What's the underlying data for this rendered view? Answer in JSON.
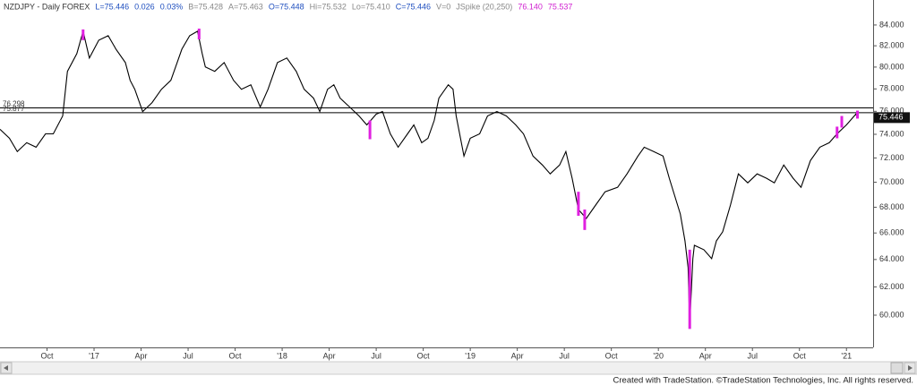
{
  "chart_data": {
    "type": "line",
    "log_scale": true,
    "header": [
      {
        "text": "NZDJPY - Daily  FOREX",
        "color": "#333333"
      },
      {
        "text": "L=75.446",
        "color": "#1f4fbf"
      },
      {
        "text": "0.026",
        "color": "#1f4fbf"
      },
      {
        "text": "0.03%",
        "color": "#1f4fbf"
      },
      {
        "text": "B=75.428",
        "color": "#888888"
      },
      {
        "text": "A=75.463",
        "color": "#888888"
      },
      {
        "text": "O=75.448",
        "color": "#1f4fbf"
      },
      {
        "text": "Hi=75.532",
        "color": "#888888"
      },
      {
        "text": "Lo=75.410",
        "color": "#888888"
      },
      {
        "text": "C=75.446",
        "color": "#1f4fbf"
      },
      {
        "text": "V=0",
        "color": "#888888"
      },
      {
        "text": "JSpike (20,250)",
        "color": "#888888"
      },
      {
        "text": "76.140",
        "color": "#d020d0"
      },
      {
        "text": "75.537",
        "color": "#d020d0"
      }
    ],
    "footer": "Created with TradeStation. ©TradeStation Technologies, Inc. All rights reserved.",
    "xlim": [
      0,
      55.7
    ],
    "xticks": [
      {
        "value": 3,
        "label": "Oct"
      },
      {
        "value": 6,
        "label": "'17"
      },
      {
        "value": 9,
        "label": "Apr"
      },
      {
        "value": 12,
        "label": "Jul"
      },
      {
        "value": 15,
        "label": "Oct"
      },
      {
        "value": 18,
        "label": "'18"
      },
      {
        "value": 21,
        "label": "Apr"
      },
      {
        "value": 24,
        "label": "Jul"
      },
      {
        "value": 27,
        "label": "Oct"
      },
      {
        "value": 30,
        "label": "'19"
      },
      {
        "value": 33,
        "label": "Apr"
      },
      {
        "value": 36,
        "label": "Jul"
      },
      {
        "value": 39,
        "label": "Oct"
      },
      {
        "value": 42,
        "label": "'20"
      },
      {
        "value": 45,
        "label": "Apr"
      },
      {
        "value": 48,
        "label": "Jul"
      },
      {
        "value": 51,
        "label": "Oct"
      },
      {
        "value": 54,
        "label": "'21"
      }
    ],
    "ylim": [
      57.98,
      86.47
    ],
    "yticks": [
      {
        "value": 60,
        "label": "60.000"
      },
      {
        "value": 62,
        "label": "62.000"
      },
      {
        "value": 64,
        "label": "64.000"
      },
      {
        "value": 66,
        "label": "66.000"
      },
      {
        "value": 68,
        "label": "68.000"
      },
      {
        "value": 70,
        "label": "70.000"
      },
      {
        "value": 72,
        "label": "72.000"
      },
      {
        "value": 74,
        "label": "74.000"
      },
      {
        "value": 76,
        "label": "76.000"
      },
      {
        "value": 78,
        "label": "78.000"
      },
      {
        "value": 80,
        "label": "80.000"
      },
      {
        "value": 82,
        "label": "82.000"
      },
      {
        "value": 84,
        "label": "84.000"
      }
    ],
    "hlines": [
      76.298,
      75.877
    ],
    "hline_color": "#000000",
    "last_price": 75.446,
    "series": [
      {
        "color": "#000000",
        "x": [
          0,
          0.6,
          1.1,
          1.7,
          2.3,
          2.9,
          3.4,
          4.0,
          4.3,
          4.9,
          5.3,
          5.7,
          6.3,
          6.9,
          7.4,
          8.0,
          8.3,
          8.6,
          9.1,
          9.7,
          10.3,
          10.9,
          11.3,
          11.6,
          12.1,
          12.6,
          12.9,
          13.1,
          13.7,
          14.3,
          14.9,
          15.4,
          16.0,
          16.6,
          17.1,
          17.7,
          18.3,
          18.9,
          19.4,
          20.0,
          20.4,
          20.9,
          21.3,
          21.7,
          22.3,
          22.9,
          23.4,
          24.0,
          24.4,
          24.9,
          25.4,
          26.0,
          26.4,
          26.9,
          27.3,
          27.7,
          28.0,
          28.6,
          28.9,
          29.1,
          29.6,
          30.0,
          30.6,
          31.1,
          31.7,
          32.3,
          32.9,
          33.4,
          34.0,
          34.6,
          35.1,
          35.7,
          36.1,
          36.5,
          36.9,
          37.4,
          38.0,
          38.6,
          39.4,
          40.0,
          40.7,
          41.1,
          41.7,
          42.3,
          42.7,
          43.4,
          43.7,
          43.9,
          44.0,
          44.2,
          44.3,
          44.9,
          45.4,
          45.7,
          46.1,
          46.6,
          47.1,
          47.7,
          48.3,
          48.9,
          49.4,
          50.0,
          50.6,
          51.1,
          51.7,
          52.3,
          52.9,
          53.4,
          54.0,
          54.6,
          54.7
        ],
        "values": [
          74.43,
          73.66,
          72.53,
          73.28,
          72.9,
          74.04,
          74.04,
          75.59,
          79.6,
          81.26,
          83.39,
          80.84,
          82.53,
          82.96,
          81.68,
          80.42,
          78.78,
          77.97,
          75.98,
          76.77,
          77.97,
          78.78,
          80.42,
          81.68,
          82.96,
          83.39,
          81.26,
          80.01,
          79.6,
          80.42,
          78.78,
          77.97,
          78.37,
          76.38,
          77.97,
          80.42,
          80.84,
          79.6,
          77.97,
          77.17,
          75.98,
          77.97,
          78.37,
          77.17,
          76.38,
          75.59,
          74.81,
          75.75,
          75.98,
          74.04,
          72.9,
          74.04,
          74.81,
          73.28,
          73.66,
          75.2,
          77.17,
          78.37,
          77.97,
          75.59,
          72.16,
          73.66,
          74.04,
          75.59,
          75.98,
          75.59,
          74.81,
          74.04,
          72.16,
          71.41,
          70.68,
          71.41,
          72.53,
          70.32,
          67.82,
          67.12,
          68.17,
          69.23,
          69.59,
          70.68,
          72.16,
          72.9,
          72.53,
          72.16,
          70.32,
          67.47,
          65.4,
          63.4,
          59.38,
          64.06,
          65.06,
          64.73,
          64.06,
          65.4,
          66.09,
          68.17,
          70.68,
          69.95,
          70.68,
          70.32,
          69.95,
          71.41,
          70.32,
          69.59,
          71.78,
          72.9,
          73.28,
          74.04,
          74.81,
          75.75,
          75.45
        ]
      }
    ],
    "spikes": {
      "color": "#e020e0",
      "x": [
        5.3,
        12.7,
        23.6,
        36.9,
        37.3,
        44.0,
        53.4,
        53.7,
        54.7
      ],
      "high": [
        83.57,
        83.65,
        75.2,
        69.23,
        67.82,
        64.73,
        74.66,
        75.59,
        76.06
      ],
      "low": [
        82.53,
        82.61,
        73.58,
        67.33,
        66.23,
        59.05,
        73.66,
        74.58,
        75.36
      ]
    }
  }
}
